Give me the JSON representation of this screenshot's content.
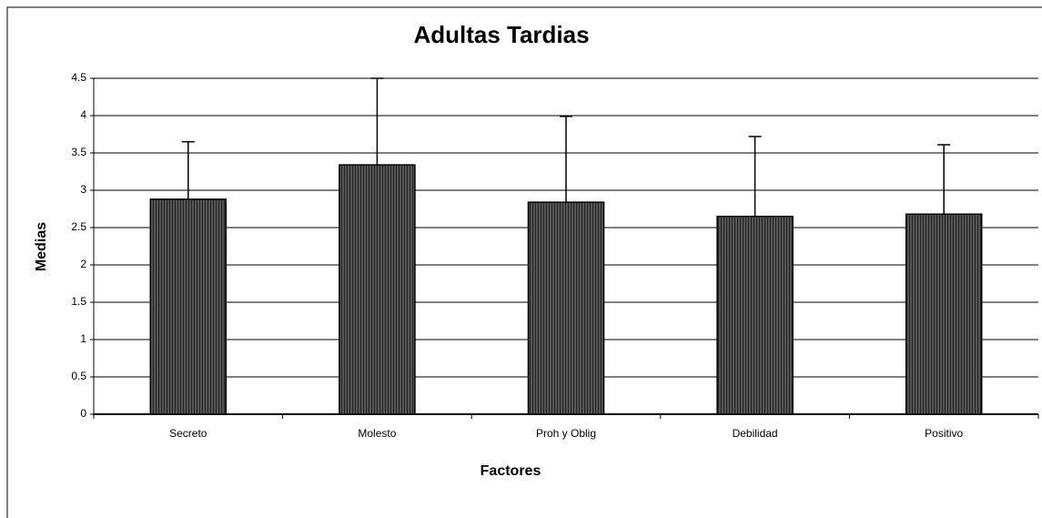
{
  "chart_data": {
    "type": "bar",
    "title": "Adultas Tardias",
    "xlabel": "Factores",
    "ylabel": "Medias",
    "categories": [
      "Secreto",
      "Molesto",
      "Proh y Oblig",
      "Debilidad",
      "Positivo"
    ],
    "values": [
      2.88,
      3.34,
      2.84,
      2.65,
      2.68
    ],
    "errors": [
      0.77,
      1.16,
      1.15,
      1.07,
      0.93
    ],
    "color": "#404040",
    "ylim": [
      0,
      4.5
    ],
    "yticks": [
      0,
      0.5,
      1,
      1.5,
      2,
      2.5,
      3,
      3.5,
      4,
      4.5
    ],
    "grid": true
  }
}
